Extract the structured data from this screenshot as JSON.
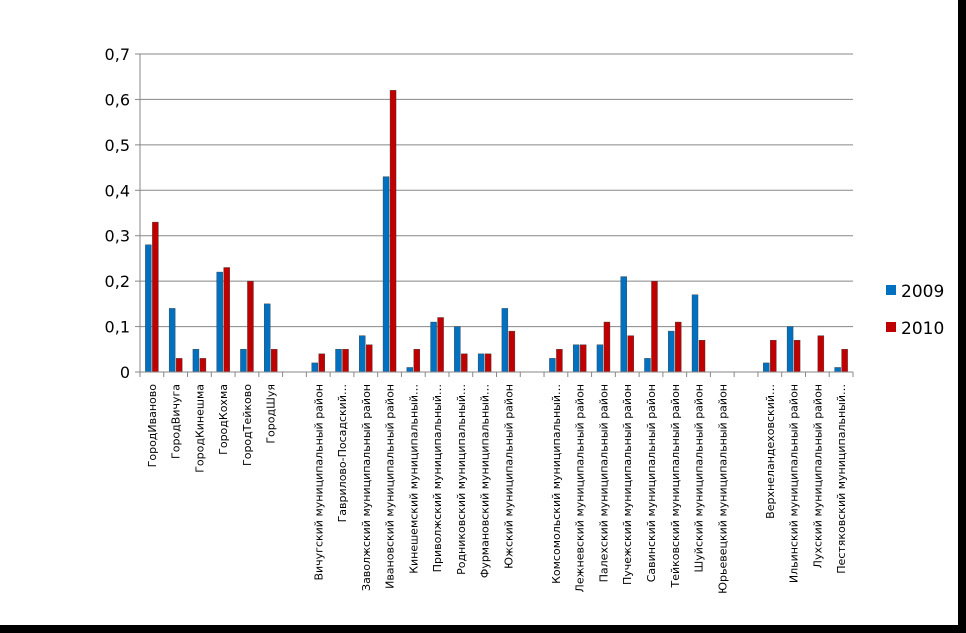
{
  "chart_data": {
    "type": "bar",
    "title": "",
    "xlabel": "",
    "ylabel": "",
    "ylim": [
      0,
      0.7
    ],
    "yticks": [
      "0",
      "0,1",
      "0,2",
      "0,3",
      "0,4",
      "0,5",
      "0,6",
      "0,7"
    ],
    "grid": true,
    "legend_position": "right",
    "categories": [
      "ГородИваново",
      "ГородВичуга",
      "ГородКинешма",
      "ГородКохма",
      "ГородТейково",
      "ГородШуя",
      "",
      "Вичугский муниципальный район",
      "Гаврилово-Посадский…",
      "Заволжский муниципальный район",
      "Ивановский муниципальный район",
      "Кинешемский муниципальный…",
      "Приволжский муниципальный…",
      "Родниковский муниципальный…",
      "Фурмановский муниципальный…",
      "Южский муниципальный район",
      "",
      "Комсомольский муниципальный…",
      "Лежневский муниципальный район",
      "Палехский муниципальный район",
      "Пучежский муниципальный район",
      "Савинский муниципальный район",
      "Тейковский муниципальный район",
      "Шуйский муниципальный район",
      "Юрьевецкий муниципальный район",
      "",
      "Верхнеландеховский…",
      "Ильинский муниципальный район",
      "Лухский муниципальный район",
      "Пестяковский муниципальный…"
    ],
    "series": [
      {
        "name": "2009",
        "color": "#0070C0",
        "values": [
          0.28,
          0.14,
          0.05,
          0.22,
          0.05,
          0.15,
          null,
          0.02,
          0.05,
          0.08,
          0.43,
          0.01,
          0.11,
          0.1,
          0.04,
          0.14,
          null,
          0.03,
          0.06,
          0.06,
          0.21,
          0.03,
          0.09,
          0.17,
          null,
          null,
          0.02,
          0.1,
          null,
          0.01
        ]
      },
      {
        "name": "2010",
        "color": "#C00000",
        "values": [
          0.33,
          0.03,
          0.03,
          0.23,
          0.2,
          0.05,
          null,
          0.04,
          0.05,
          0.06,
          0.62,
          0.05,
          0.12,
          0.04,
          0.04,
          0.09,
          null,
          0.05,
          0.06,
          0.11,
          0.08,
          0.2,
          0.11,
          0.07,
          null,
          null,
          0.07,
          0.07,
          0.08,
          0.05
        ]
      }
    ]
  }
}
